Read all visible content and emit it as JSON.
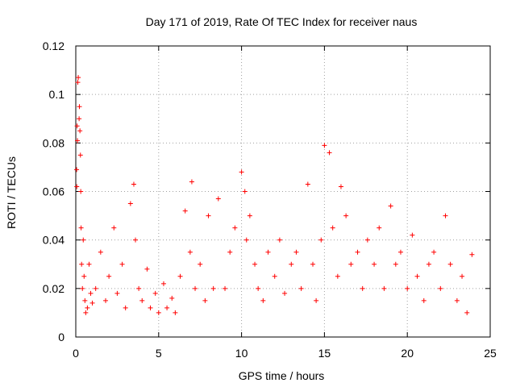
{
  "chart_data": {
    "type": "scatter",
    "title": "Day 171 of 2019, Rate Of TEC Index for receiver naus",
    "xlabel": "GPS time / hours",
    "ylabel": "ROTI / TECUs",
    "xlim": [
      0,
      25
    ],
    "ylim": [
      0,
      0.12
    ],
    "x_ticks": [
      0,
      5,
      10,
      15,
      20,
      25
    ],
    "x_tick_labels": [
      "0",
      "5",
      "10",
      "15",
      "20",
      "25"
    ],
    "y_ticks": [
      0,
      0.02,
      0.04,
      0.06,
      0.08,
      0.1,
      0.12
    ],
    "y_tick_labels": [
      "0",
      "0.02",
      "0.04",
      "0.06",
      "0.08",
      "0.1",
      "0.12"
    ],
    "grid": true,
    "marker": "plus",
    "color": "#ff0000",
    "series": [
      {
        "x": [
          0.05,
          0.06,
          0.08,
          0.1,
          0.12,
          0.15,
          0.2,
          0.22,
          0.25,
          0.28,
          0.3,
          0.32,
          0.35,
          0.4,
          0.45,
          0.5,
          0.55,
          0.6,
          0.7,
          0.8,
          0.9,
          1.0,
          1.2,
          1.5,
          1.8,
          2.0,
          2.3,
          2.5,
          2.8,
          3.0,
          3.3,
          3.5,
          3.6,
          3.8,
          4.0,
          4.3,
          4.5,
          4.8,
          5.0,
          5.3,
          5.5,
          5.8,
          6.0,
          6.3,
          6.6,
          6.9,
          7.0,
          7.2,
          7.5,
          7.8,
          8.0,
          8.3,
          8.6,
          9.0,
          9.3,
          9.6,
          10.0,
          10.2,
          10.3,
          10.5,
          10.8,
          11.0,
          11.3,
          11.6,
          12.0,
          12.3,
          12.6,
          13.0,
          13.3,
          13.6,
          14.0,
          14.3,
          14.5,
          14.8,
          15.0,
          15.3,
          15.5,
          15.8,
          16.0,
          16.3,
          16.6,
          17.0,
          17.3,
          17.6,
          18.0,
          18.3,
          18.6,
          19.0,
          19.3,
          19.6,
          20.0,
          20.3,
          20.6,
          21.0,
          21.3,
          21.6,
          22.0,
          22.3,
          22.6,
          23.0,
          23.3,
          23.6,
          23.9
        ],
        "y": [
          0.069,
          0.062,
          0.087,
          0.081,
          0.105,
          0.107,
          0.09,
          0.095,
          0.085,
          0.075,
          0.06,
          0.045,
          0.03,
          0.02,
          0.04,
          0.025,
          0.015,
          0.01,
          0.012,
          0.03,
          0.018,
          0.014,
          0.02,
          0.035,
          0.015,
          0.025,
          0.045,
          0.018,
          0.03,
          0.012,
          0.055,
          0.063,
          0.04,
          0.02,
          0.015,
          0.028,
          0.012,
          0.018,
          0.01,
          0.022,
          0.012,
          0.016,
          0.01,
          0.025,
          0.052,
          0.035,
          0.064,
          0.02,
          0.03,
          0.015,
          0.05,
          0.02,
          0.057,
          0.02,
          0.035,
          0.045,
          0.068,
          0.06,
          0.04,
          0.05,
          0.03,
          0.02,
          0.015,
          0.035,
          0.025,
          0.04,
          0.018,
          0.03,
          0.035,
          0.02,
          0.063,
          0.03,
          0.015,
          0.04,
          0.079,
          0.076,
          0.045,
          0.025,
          0.062,
          0.05,
          0.03,
          0.035,
          0.02,
          0.04,
          0.03,
          0.045,
          0.02,
          0.054,
          0.03,
          0.035,
          0.02,
          0.042,
          0.025,
          0.015,
          0.03,
          0.035,
          0.02,
          0.05,
          0.03,
          0.015,
          0.025,
          0.01,
          0.034
        ]
      }
    ]
  }
}
